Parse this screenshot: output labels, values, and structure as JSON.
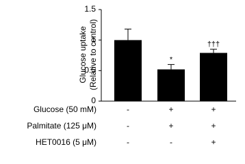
{
  "chart_data": {
    "type": "bar",
    "ylabel": [
      "Glucose uptake",
      "(Relative to control)"
    ],
    "categories": [
      null,
      null,
      null
    ],
    "values": [
      1.0,
      0.52,
      0.79
    ],
    "errors": [
      0.18,
      0.08,
      0.06
    ],
    "annotations": [
      null,
      "*",
      "†††"
    ],
    "color": "#000000",
    "ylim": [
      0,
      1.5
    ],
    "yticks": [
      0,
      0.5,
      1,
      1.5
    ],
    "grid": false,
    "conditions": [
      {
        "label": "Glucose (50 mM)",
        "marks": [
          "-",
          "+",
          "+"
        ]
      },
      {
        "label": "Palmitate (125 μM)",
        "marks": [
          "-",
          "+",
          "+"
        ]
      },
      {
        "label": "HET0016 (5 μM)",
        "marks": [
          "-",
          "-",
          "+"
        ]
      }
    ]
  }
}
